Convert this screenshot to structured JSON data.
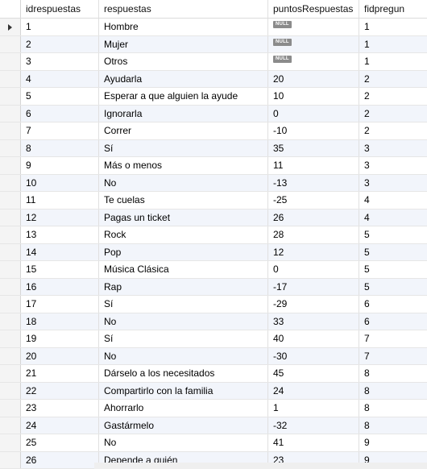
{
  "columns": [
    "idrespuestas",
    "respuestas",
    "puntosRespuestas",
    "fidpregun"
  ],
  "null_label": "NULL",
  "rows": [
    {
      "id": "1",
      "respuesta": "Hombre",
      "puntos": null,
      "fid": "1"
    },
    {
      "id": "2",
      "respuesta": "Mujer",
      "puntos": null,
      "fid": "1"
    },
    {
      "id": "3",
      "respuesta": "Otros",
      "puntos": null,
      "fid": "1"
    },
    {
      "id": "4",
      "respuesta": "Ayudarla",
      "puntos": "20",
      "fid": "2"
    },
    {
      "id": "5",
      "respuesta": "Esperar a que alguien la ayude",
      "puntos": "10",
      "fid": "2"
    },
    {
      "id": "6",
      "respuesta": "Ignorarla",
      "puntos": "0",
      "fid": "2"
    },
    {
      "id": "7",
      "respuesta": "Correr",
      "puntos": "-10",
      "fid": "2"
    },
    {
      "id": "8",
      "respuesta": "Sí",
      "puntos": "35",
      "fid": "3"
    },
    {
      "id": "9",
      "respuesta": "Más o menos",
      "puntos": "11",
      "fid": "3"
    },
    {
      "id": "10",
      "respuesta": "No",
      "puntos": "-13",
      "fid": "3"
    },
    {
      "id": "11",
      "respuesta": "Te cuelas",
      "puntos": "-25",
      "fid": "4"
    },
    {
      "id": "12",
      "respuesta": "Pagas un ticket",
      "puntos": "26",
      "fid": "4"
    },
    {
      "id": "13",
      "respuesta": "Rock",
      "puntos": "28",
      "fid": "5"
    },
    {
      "id": "14",
      "respuesta": "Pop",
      "puntos": "12",
      "fid": "5"
    },
    {
      "id": "15",
      "respuesta": "Música Clásica",
      "puntos": "0",
      "fid": "5"
    },
    {
      "id": "16",
      "respuesta": "Rap",
      "puntos": "-17",
      "fid": "5"
    },
    {
      "id": "17",
      "respuesta": "Sí",
      "puntos": "-29",
      "fid": "6"
    },
    {
      "id": "18",
      "respuesta": "No",
      "puntos": "33",
      "fid": "6"
    },
    {
      "id": "19",
      "respuesta": "Sí",
      "puntos": "40",
      "fid": "7"
    },
    {
      "id": "20",
      "respuesta": "No",
      "puntos": "-30",
      "fid": "7"
    },
    {
      "id": "21",
      "respuesta": "Dárselo a los necesitados",
      "puntos": "45",
      "fid": "8"
    },
    {
      "id": "22",
      "respuesta": "Compartirlo con la familia",
      "puntos": "24",
      "fid": "8"
    },
    {
      "id": "23",
      "respuesta": "Ahorrarlo",
      "puntos": "1",
      "fid": "8"
    },
    {
      "id": "24",
      "respuesta": "Gastármelo",
      "puntos": "-32",
      "fid": "8"
    },
    {
      "id": "25",
      "respuesta": "No",
      "puntos": "41",
      "fid": "9"
    },
    {
      "id": "26",
      "respuesta": "Depende a quién",
      "puntos": "23",
      "fid": "9"
    }
  ],
  "current_row_marker": "row-selector-icon"
}
